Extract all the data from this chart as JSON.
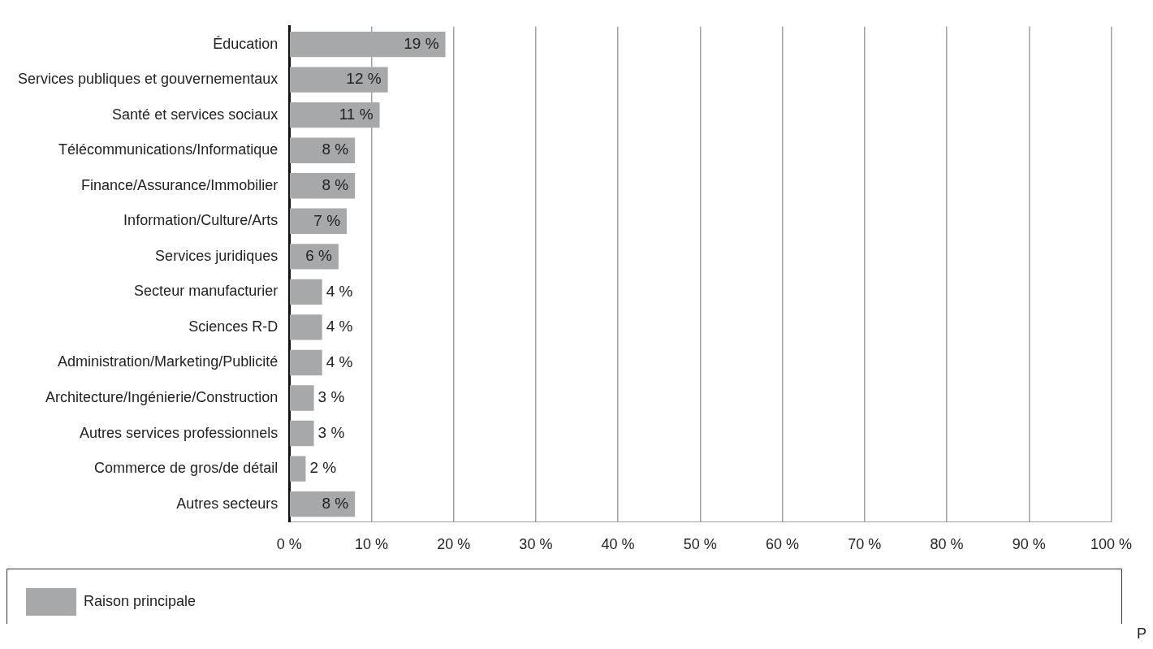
{
  "chart_data": {
    "type": "bar",
    "orientation": "horizontal",
    "categories": [
      "Éducation",
      "Services publiques et gouvernementaux",
      "Santé et services sociaux",
      "Télécommunications/Informatique",
      "Finance/Assurance/Immobilier",
      "Information/Culture/Arts",
      "Services juridiques",
      "Secteur manufacturier",
      "Sciences R-D",
      "Administration/Marketing/Publicité",
      "Architecture/Ingénierie/Construction",
      "Autres services professionnels",
      "Commerce de gros/de détail",
      "Autres secteurs"
    ],
    "series": [
      {
        "name": "Raison principale",
        "color": "#a7a8aa",
        "values": [
          19,
          12,
          11,
          8,
          8,
          7,
          6,
          4,
          4,
          4,
          3,
          3,
          2,
          8
        ],
        "value_labels": [
          "19 %",
          "12 %",
          "11 %",
          "8 %",
          "8 %",
          "7 %",
          "6 %",
          "4 %",
          "4 %",
          "4 %",
          "3 %",
          "3 %",
          "2 %",
          "8 %"
        ]
      }
    ],
    "xlim": [
      0,
      100
    ],
    "xticks": [
      {
        "value": 0,
        "label": "0 %"
      },
      {
        "value": 10,
        "label": "10 %"
      },
      {
        "value": 20,
        "label": "20 %"
      },
      {
        "value": 30,
        "label": "30 %"
      },
      {
        "value": 40,
        "label": "40 %"
      },
      {
        "value": 50,
        "label": "50 %"
      },
      {
        "value": 60,
        "label": "60 %"
      },
      {
        "value": 70,
        "label": "70 %"
      },
      {
        "value": 80,
        "label": "80 %"
      },
      {
        "value": 90,
        "label": "90 %"
      },
      {
        "value": 100,
        "label": "100 %"
      }
    ],
    "grid": "x",
    "legend": "bottom left",
    "annotations": [
      "P"
    ]
  }
}
